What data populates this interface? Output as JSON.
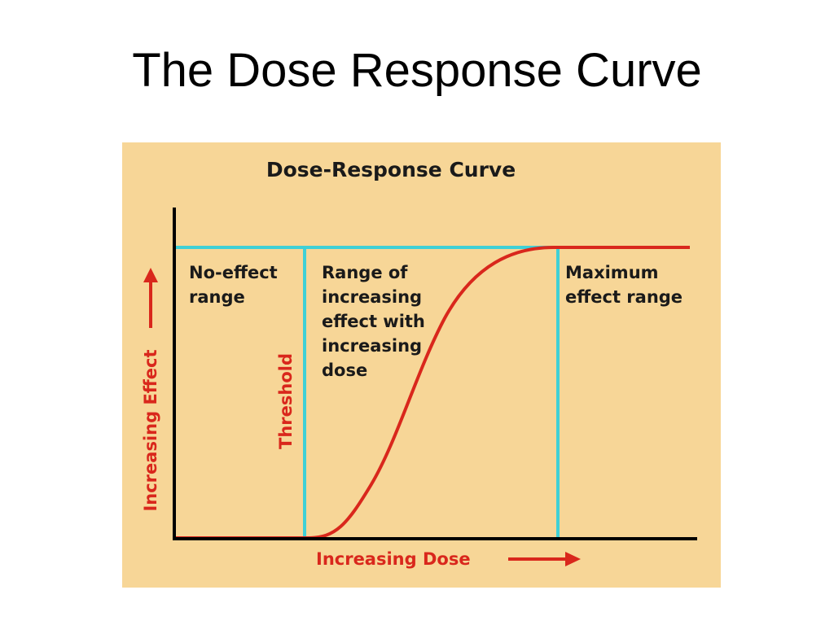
{
  "slide": {
    "title": "The Dose Response Curve"
  },
  "diagram": {
    "title": "Dose-Response Curve",
    "x_axis_label": "Increasing Dose",
    "y_axis_label": "Increasing Effect",
    "threshold_label": "Threshold",
    "regions": {
      "no_effect": [
        "No-effect",
        "range"
      ],
      "increasing": [
        "Range of",
        "increasing",
        "effect with",
        "increasing",
        "dose"
      ],
      "maximum": [
        "Maximum",
        "effect range"
      ]
    }
  },
  "colors": {
    "background": "#f7d697",
    "curve": "#d9271c",
    "boundary_lines": "#3fd0d6",
    "axes": "#000000",
    "text": "#1a1a1a"
  }
}
